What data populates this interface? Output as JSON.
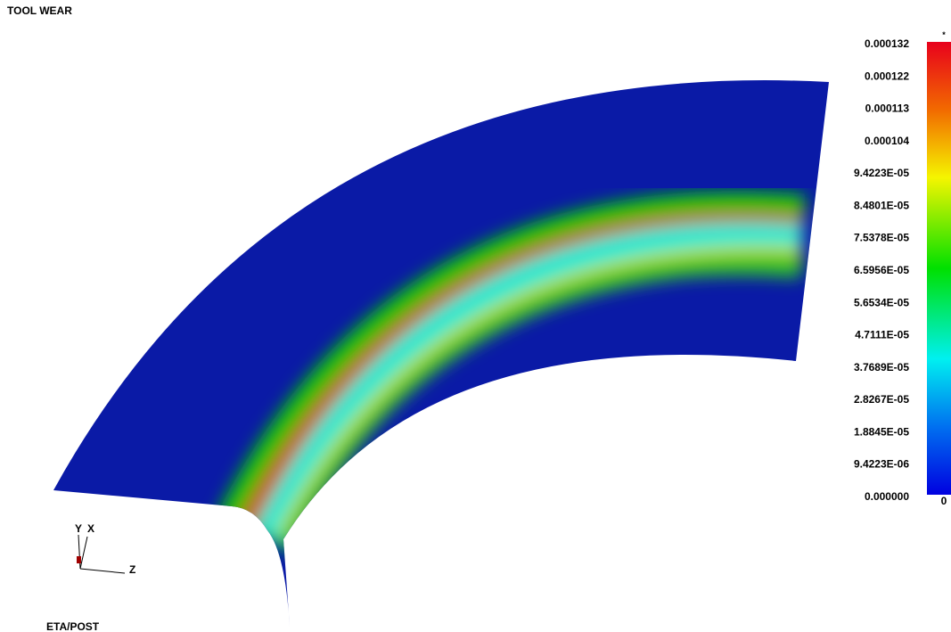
{
  "header": {
    "title": "TOOL WEAR"
  },
  "legend": {
    "top_marker": "*",
    "bottom_marker": "0",
    "labels": [
      "0.000132",
      "0.000122",
      "0.000113",
      "0.000104",
      "9.4223E-05",
      "8.4801E-05",
      "7.5378E-05",
      "6.5956E-05",
      "5.6534E-05",
      "4.7111E-05",
      "3.7689E-05",
      "2.8267E-05",
      "1.8845E-05",
      "9.4223E-06",
      "0.000000"
    ]
  },
  "triad": {
    "y": "Y",
    "x": "X",
    "z": "Z"
  },
  "footer": {
    "text": "ETA/POST"
  }
}
